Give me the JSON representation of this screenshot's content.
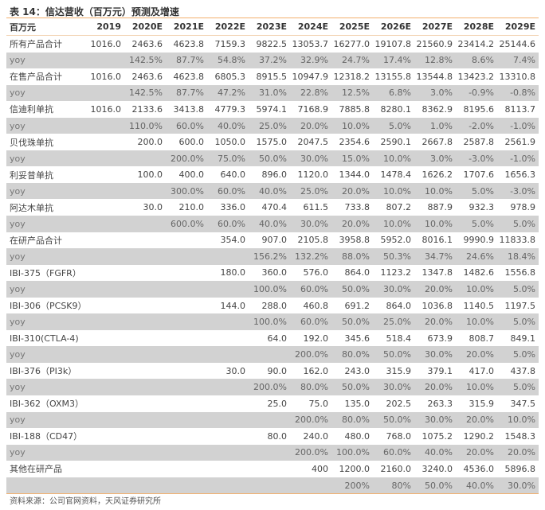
{
  "title": "表 14：信达营收（百万元）预测及增速",
  "header": {
    "label": "百万元",
    "years": [
      "2019",
      "2020E",
      "2021E",
      "2022E",
      "2023E",
      "2024E",
      "2025E",
      "2026E",
      "2027E",
      "2028E",
      "2029E"
    ]
  },
  "rows": [
    {
      "label": "所有产品合计",
      "type": "value",
      "cells": [
        "1016.0",
        "2463.6",
        "4623.8",
        "7159.3",
        "9822.5",
        "13053.7",
        "16277.0",
        "19107.8",
        "21560.9",
        "23414.2",
        "25144.6"
      ]
    },
    {
      "label": "yoy",
      "type": "yoy",
      "cells": [
        "",
        "142.5%",
        "87.7%",
        "54.8%",
        "37.2%",
        "32.9%",
        "24.7%",
        "17.4%",
        "12.8%",
        "8.6%",
        "7.4%"
      ]
    },
    {
      "label": "在售产品合计",
      "type": "value",
      "cells": [
        "1016.0",
        "2463.6",
        "4623.8",
        "6805.3",
        "8915.5",
        "10947.9",
        "12318.2",
        "13155.8",
        "13544.8",
        "13423.2",
        "13310.8"
      ]
    },
    {
      "label": "yoy",
      "type": "yoy",
      "cells": [
        "",
        "142.5%",
        "87.7%",
        "47.2%",
        "31.0%",
        "22.8%",
        "12.5%",
        "6.8%",
        "3.0%",
        "-0.9%",
        "-0.8%"
      ]
    },
    {
      "label": "信迪利单抗",
      "type": "value",
      "cells": [
        "1016.0",
        "2133.6",
        "3413.8",
        "4779.3",
        "5974.1",
        "7168.9",
        "7885.8",
        "8280.1",
        "8362.9",
        "8195.6",
        "8113.7"
      ]
    },
    {
      "label": "yoy",
      "type": "yoy",
      "cells": [
        "",
        "110.0%",
        "60.0%",
        "40.0%",
        "25.0%",
        "20.0%",
        "10.0%",
        "5.0%",
        "1.0%",
        "-2.0%",
        "-1.0%"
      ]
    },
    {
      "label": "贝伐珠单抗",
      "type": "value",
      "cells": [
        "",
        "200.0",
        "600.0",
        "1050.0",
        "1575.0",
        "2047.5",
        "2354.6",
        "2590.1",
        "2667.8",
        "2587.8",
        "2561.9"
      ]
    },
    {
      "label": "yoy",
      "type": "yoy",
      "cells": [
        "",
        "",
        "200.0%",
        "75.0%",
        "50.0%",
        "30.0%",
        "15.0%",
        "10.0%",
        "3.0%",
        "-3.0%",
        "-1.0%"
      ]
    },
    {
      "label": "利妥昔单抗",
      "type": "value",
      "cells": [
        "",
        "100.0",
        "400.0",
        "640.0",
        "896.0",
        "1120.0",
        "1344.0",
        "1478.4",
        "1626.2",
        "1707.6",
        "1656.3"
      ]
    },
    {
      "label": "yoy",
      "type": "yoy",
      "cells": [
        "",
        "",
        "300.0%",
        "60.0%",
        "40.0%",
        "25.0%",
        "20.0%",
        "10.0%",
        "10.0%",
        "5.0%",
        "-3.0%"
      ]
    },
    {
      "label": "阿达木单抗",
      "type": "value",
      "cells": [
        "",
        "30.0",
        "210.0",
        "336.0",
        "470.4",
        "611.5",
        "733.8",
        "807.2",
        "887.9",
        "932.3",
        "978.9"
      ]
    },
    {
      "label": "yoy",
      "type": "yoy",
      "cells": [
        "",
        "",
        "600.0%",
        "60.0%",
        "40.0%",
        "30.0%",
        "20.0%",
        "10.0%",
        "10.0%",
        "5.0%",
        "5.0%"
      ]
    },
    {
      "label": "在研产品合计",
      "type": "value",
      "cells": [
        "",
        "",
        "",
        "354.0",
        "907.0",
        "2105.8",
        "3958.8",
        "5952.0",
        "8016.1",
        "9990.9",
        "11833.8"
      ]
    },
    {
      "label": "yoy",
      "type": "yoy",
      "cells": [
        "",
        "",
        "",
        "",
        "156.2%",
        "132.2%",
        "88.0%",
        "50.3%",
        "34.7%",
        "24.6%",
        "18.4%"
      ]
    },
    {
      "label": "IBI-375（FGFR）",
      "type": "value",
      "cells": [
        "",
        "",
        "",
        "180.0",
        "360.0",
        "576.0",
        "864.0",
        "1123.2",
        "1347.8",
        "1482.6",
        "1556.8"
      ]
    },
    {
      "label": "yoy",
      "type": "yoy",
      "cells": [
        "",
        "",
        "",
        "",
        "100.0%",
        "60.0%",
        "50.0%",
        "30.0%",
        "20.0%",
        "10.0%",
        "5.0%"
      ]
    },
    {
      "label": "IBI-306（PCSK9）",
      "type": "value",
      "cells": [
        "",
        "",
        "",
        "144.0",
        "288.0",
        "460.8",
        "691.2",
        "864.0",
        "1036.8",
        "1140.5",
        "1197.5"
      ]
    },
    {
      "label": "yoy",
      "type": "yoy",
      "cells": [
        "",
        "",
        "",
        "",
        "100.0%",
        "60.0%",
        "50.0%",
        "25.0%",
        "20.0%",
        "10.0%",
        "5.0%"
      ]
    },
    {
      "label": "IBI-310(CTLA-4)",
      "type": "value",
      "cells": [
        "",
        "",
        "",
        "",
        "64.0",
        "192.0",
        "345.6",
        "518.4",
        "673.9",
        "808.7",
        "849.1"
      ]
    },
    {
      "label": "yoy",
      "type": "yoy",
      "cells": [
        "",
        "",
        "",
        "",
        "",
        "200.0%",
        "80.0%",
        "50.0%",
        "30.0%",
        "20.0%",
        "5.0%"
      ]
    },
    {
      "label": "IBI-376（PI3k）",
      "type": "value",
      "cells": [
        "",
        "",
        "",
        "30.0",
        "90.0",
        "162.0",
        "243.0",
        "315.9",
        "379.1",
        "417.0",
        "437.8"
      ]
    },
    {
      "label": "yoy",
      "type": "yoy",
      "cells": [
        "",
        "",
        "",
        "",
        "200.0%",
        "80.0%",
        "50.0%",
        "30.0%",
        "20.0%",
        "10.0%",
        "5.0%"
      ]
    },
    {
      "label": "IBI-362（OXM3）",
      "type": "value",
      "cells": [
        "",
        "",
        "",
        "",
        "25.0",
        "75.0",
        "135.0",
        "202.5",
        "263.3",
        "315.9",
        "347.5"
      ]
    },
    {
      "label": "yoy",
      "type": "yoy",
      "cells": [
        "",
        "",
        "",
        "",
        "",
        "200.0%",
        "80.0%",
        "50.0%",
        "30.0%",
        "20.0%",
        "10.0%"
      ]
    },
    {
      "label": "IBI-188（CD47）",
      "type": "value",
      "cells": [
        "",
        "",
        "",
        "",
        "80.0",
        "240.0",
        "480.0",
        "768.0",
        "1075.2",
        "1290.2",
        "1548.3"
      ]
    },
    {
      "label": "yoy",
      "type": "yoy",
      "cells": [
        "",
        "",
        "",
        "",
        "",
        "200.0%",
        "100.0%",
        "60.0%",
        "40.0%",
        "20.0%",
        "20.0%"
      ]
    },
    {
      "label": "其他在研产品",
      "type": "value",
      "cells": [
        "",
        "",
        "",
        "",
        "",
        "400",
        "1200.0",
        "2160.0",
        "3240.0",
        "4536.0",
        "5896.8"
      ]
    },
    {
      "label": "",
      "type": "yoy",
      "cells": [
        "",
        "",
        "",
        "",
        "",
        "",
        "200%",
        "80%",
        "50.0%",
        "40.0%",
        "30.0%"
      ]
    }
  ],
  "source": "资料来源：公司官网资料，天风证券研究所",
  "colors": {
    "accent_line": "#f2b06e",
    "yoy_row_bg": "#d2d2d2"
  }
}
